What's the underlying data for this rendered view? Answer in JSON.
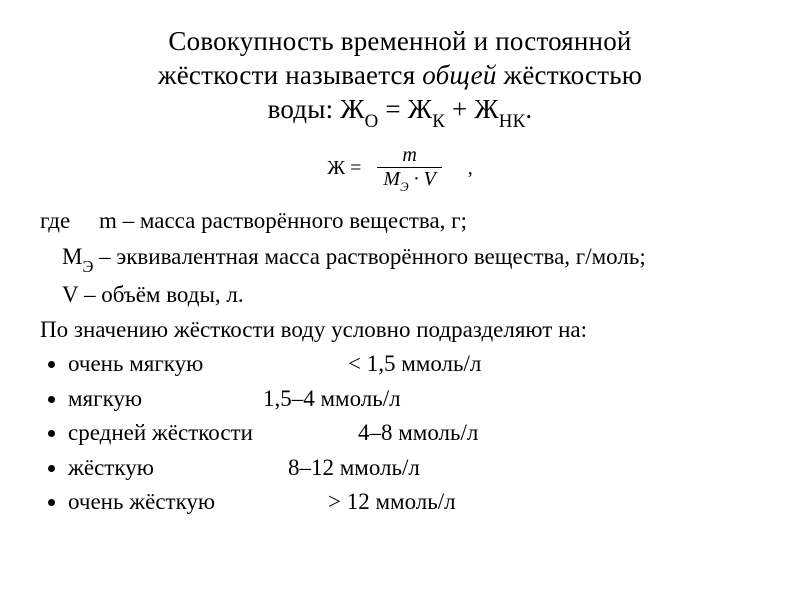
{
  "title": {
    "line1": "Совокупность временной и постоянной",
    "line2_pre": "жёсткости называется ",
    "line2_italic": "общей",
    "line2_post": " жёсткостью",
    "line3_pre": "воды: Ж",
    "sub_o": "О",
    "eq1": "  =   Ж",
    "sub_k": "К",
    "plus": " + Ж",
    "sub_nk": "НК",
    "dot": "."
  },
  "formula": {
    "lhs": "Ж =",
    "numerator": "m",
    "den_m": "M",
    "den_sub": "Э",
    "den_dot": " · ",
    "den_v": "V",
    "comma": ","
  },
  "defs": {
    "where": "где",
    "m_line": "m – масса растворённого вещества, г;",
    "me_pre": "М",
    "me_sub": "Э",
    "me_post": " – эквивалентная масса растворённого вещества, г/моль;",
    "v_line": "V – объём воды, л."
  },
  "section": "По значению жёсткости воду условно подразделяют на:",
  "levels": [
    {
      "label": "очень мягкую",
      "range": "< 1,5   ммоль/л"
    },
    {
      "label": "мягкую",
      "range": "1,5–4   ммоль/л"
    },
    {
      "label": "средней жёсткости",
      "range": "4–8   ммоль/л"
    },
    {
      "label": "жёсткую",
      "range": "8–12   ммоль/л"
    },
    {
      "label": "очень жёсткую",
      "range": "> 12   ммоль/л"
    }
  ]
}
